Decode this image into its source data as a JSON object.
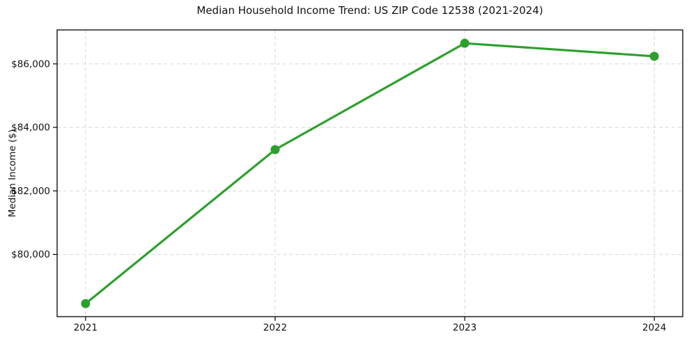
{
  "chart_data": {
    "type": "line",
    "title": "Median Household Income Trend: US ZIP Code 12538 (2021-2024)",
    "xlabel": "",
    "ylabel": "Median Income ($)",
    "categories": [
      "2021",
      "2022",
      "2023",
      "2024"
    ],
    "values": [
      78450,
      83300,
      86650,
      86240
    ],
    "ylim": [
      78040,
      87070
    ],
    "xlim_index": [
      -0.15,
      3.15
    ],
    "yticks": [
      {
        "value": 80000,
        "label": "$80,000"
      },
      {
        "value": 82000,
        "label": "$82,000"
      },
      {
        "value": 84000,
        "label": "$84,000"
      },
      {
        "value": 86000,
        "label": "$86,000"
      }
    ],
    "grid": true,
    "grid_style": "dashed",
    "legend_position": "none",
    "line_color": "#2ca02c",
    "marker": "circle",
    "grid_color": "#d5d5d5",
    "axis_color": "#000000",
    "text_color": "#111111",
    "background": "#ffffff"
  }
}
